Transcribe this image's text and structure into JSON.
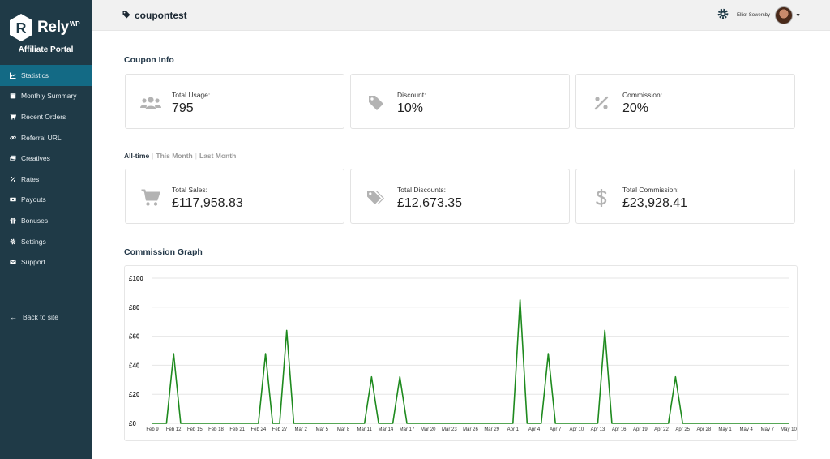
{
  "brand": {
    "name": "Rely",
    "name_suffix": "WP",
    "portal_title": "Affiliate Portal"
  },
  "sidebar": {
    "items": [
      {
        "label": "Statistics",
        "icon": "chart-line-icon",
        "active": true
      },
      {
        "label": "Monthly Summary",
        "icon": "calendar-icon",
        "active": false
      },
      {
        "label": "Recent Orders",
        "icon": "cart-icon",
        "active": false
      },
      {
        "label": "Referral URL",
        "icon": "link-icon",
        "active": false
      },
      {
        "label": "Creatives",
        "icon": "images-icon",
        "active": false
      },
      {
        "label": "Rates",
        "icon": "percent-icon",
        "active": false
      },
      {
        "label": "Payouts",
        "icon": "money-icon",
        "active": false
      },
      {
        "label": "Bonuses",
        "icon": "gift-icon",
        "active": false
      },
      {
        "label": "Settings",
        "icon": "gear-icon",
        "active": false
      },
      {
        "label": "Support",
        "icon": "envelope-icon",
        "active": false
      }
    ],
    "back_label": "Back to site"
  },
  "header": {
    "title": "coupontest",
    "user_name": "Elliot Sowersby"
  },
  "coupon_info": {
    "title": "Coupon Info",
    "cards": [
      {
        "label": "Total Usage:",
        "value": "795",
        "icon": "users-icon"
      },
      {
        "label": "Discount:",
        "value": "10%",
        "icon": "tag-icon"
      },
      {
        "label": "Commission:",
        "value": "20%",
        "icon": "percent-icon"
      }
    ]
  },
  "filters": {
    "items": [
      {
        "label": "All-time",
        "active": true
      },
      {
        "label": "This Month",
        "active": false
      },
      {
        "label": "Last Month",
        "active": false
      }
    ]
  },
  "totals": {
    "cards": [
      {
        "label": "Total Sales:",
        "value": "£117,958.83",
        "icon": "cart-icon"
      },
      {
        "label": "Total Discounts:",
        "value": "£12,673.35",
        "icon": "tags-icon"
      },
      {
        "label": "Total Commission:",
        "value": "£23,928.41",
        "icon": "dollar-icon"
      }
    ]
  },
  "graph": {
    "title": "Commission Graph"
  },
  "colors": {
    "sidebar_bg": "#1f3a47",
    "sidebar_active": "#136a85",
    "line": "#1e8a1e"
  },
  "chart_data": {
    "type": "line",
    "title": "",
    "xlabel": "",
    "ylabel": "",
    "ylim": [
      0,
      100
    ],
    "yticks": [
      "£0",
      "£20",
      "£40",
      "£60",
      "£80",
      "£100"
    ],
    "grid": true,
    "x_tick_labels": [
      "Feb 9",
      "Feb 12",
      "Feb 15",
      "Feb 18",
      "Feb 21",
      "Feb 24",
      "Feb 27",
      "Mar 2",
      "Mar 5",
      "Mar 8",
      "Mar 11",
      "Mar 14",
      "Mar 17",
      "Mar 20",
      "Mar 23",
      "Mar 26",
      "Mar 29",
      "Apr 1",
      "Apr 4",
      "Apr 7",
      "Apr 10",
      "Apr 13",
      "Apr 16",
      "Apr 19",
      "Apr 22",
      "Apr 25",
      "Apr 28",
      "May 1",
      "May 4",
      "May 7",
      "May 10"
    ],
    "series": [
      {
        "x": [
          "Feb 9",
          "Feb 10",
          "Feb 11",
          "Feb 12",
          "Feb 13",
          "Feb 14",
          "Feb 15",
          "Feb 16",
          "Feb 17",
          "Feb 18",
          "Feb 19",
          "Feb 20",
          "Feb 21",
          "Feb 22",
          "Feb 23",
          "Feb 24",
          "Feb 25",
          "Feb 26",
          "Feb 27",
          "Feb 28",
          "Mar 1",
          "Mar 2",
          "Mar 3",
          "Mar 4",
          "Mar 5",
          "Mar 6",
          "Mar 7",
          "Mar 8",
          "Mar 9",
          "Mar 10",
          "Mar 11",
          "Mar 12",
          "Mar 13",
          "Mar 14",
          "Mar 15",
          "Mar 16",
          "Mar 17",
          "Mar 18",
          "Mar 19",
          "Mar 20",
          "Mar 21",
          "Mar 22",
          "Mar 23",
          "Mar 24",
          "Mar 25",
          "Mar 26",
          "Mar 27",
          "Mar 28",
          "Mar 29",
          "Mar 30",
          "Mar 31",
          "Apr 1",
          "Apr 2",
          "Apr 3",
          "Apr 4",
          "Apr 5",
          "Apr 6",
          "Apr 7",
          "Apr 8",
          "Apr 9",
          "Apr 10",
          "Apr 11",
          "Apr 12",
          "Apr 13",
          "Apr 14",
          "Apr 15",
          "Apr 16",
          "Apr 17",
          "Apr 18",
          "Apr 19",
          "Apr 20",
          "Apr 21",
          "Apr 22",
          "Apr 23",
          "Apr 24",
          "Apr 25",
          "Apr 26",
          "Apr 27",
          "Apr 28",
          "Apr 29",
          "Apr 30",
          "May 1",
          "May 2",
          "May 3",
          "May 4",
          "May 5",
          "May 6",
          "May 7",
          "May 8",
          "May 9",
          "May 10"
        ],
        "values": [
          0,
          0,
          0,
          48,
          0,
          0,
          0,
          0,
          0,
          0,
          0,
          0,
          0,
          0,
          0,
          0,
          48,
          0,
          0,
          64,
          0,
          0,
          0,
          0,
          0,
          0,
          0,
          0,
          0,
          0,
          0,
          32,
          0,
          0,
          0,
          32,
          0,
          0,
          0,
          0,
          0,
          0,
          0,
          0,
          0,
          0,
          0,
          0,
          0,
          0,
          0,
          0,
          85,
          0,
          0,
          0,
          48,
          0,
          0,
          0,
          0,
          0,
          0,
          0,
          64,
          0,
          0,
          0,
          0,
          0,
          0,
          0,
          0,
          0,
          32,
          0,
          0,
          0,
          0,
          0,
          0,
          0,
          0,
          0,
          0,
          0,
          0,
          0,
          0,
          0,
          0
        ]
      }
    ]
  }
}
